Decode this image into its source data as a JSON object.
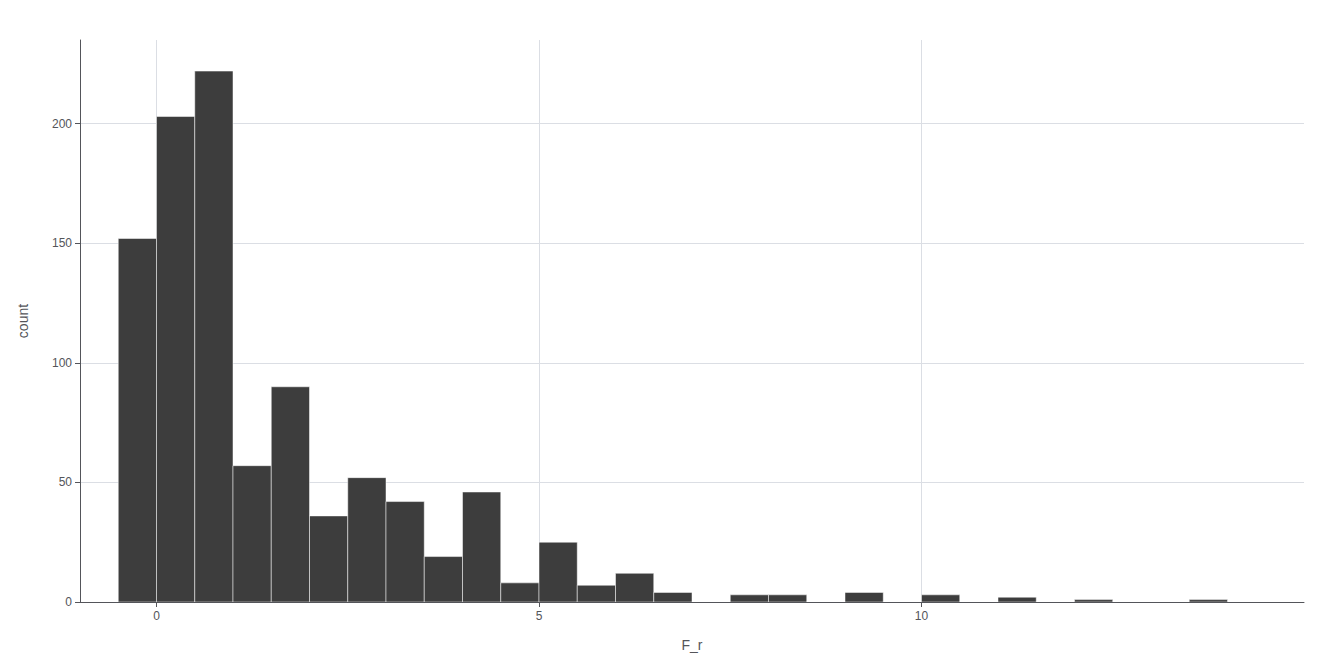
{
  "chart_data": {
    "type": "histogram",
    "xlabel": "F_r",
    "ylabel": "count",
    "bins": [
      -0.5,
      0.0,
      0.5,
      1.0,
      1.5,
      2.0,
      2.5,
      3.0,
      3.5,
      4.0,
      4.5,
      5.0,
      5.5,
      6.0,
      6.5,
      7.0,
      7.5,
      8.0,
      8.5,
      9.0,
      9.5,
      10.0,
      10.5,
      11.0,
      11.5,
      12.0,
      12.5,
      13.0,
      13.5,
      14.0
    ],
    "values": [
      152,
      203,
      222,
      57,
      90,
      36,
      52,
      42,
      19,
      46,
      8,
      25,
      7,
      12,
      4,
      0,
      3,
      3,
      0,
      4,
      0,
      3,
      0,
      2,
      0,
      1,
      0,
      0,
      1
    ],
    "color": "#3d3d3d",
    "xlim": [
      -1,
      15
    ],
    "xticks": [
      0,
      5,
      10
    ],
    "ylim": [
      0,
      235
    ],
    "yticks": [
      0,
      50,
      100,
      150,
      200
    ],
    "grid": true
  }
}
